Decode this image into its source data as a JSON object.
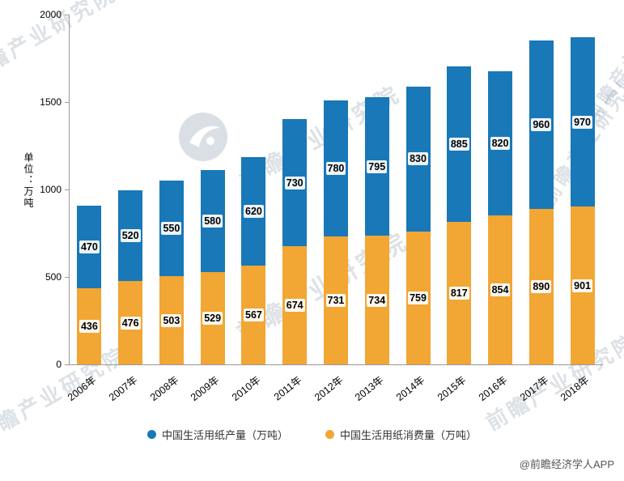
{
  "chart_data": {
    "type": "bar",
    "stacked": true,
    "title": "",
    "ylabel": "单位：万吨",
    "ylim": [
      0,
      2000
    ],
    "yticks": [
      0,
      500,
      1000,
      1500,
      2000
    ],
    "grid": false,
    "legend_position": "bottom",
    "categories": [
      "2006年",
      "2007年",
      "2008年",
      "2009年",
      "2010年",
      "2011年",
      "2012年",
      "2013年",
      "2014年",
      "2015年",
      "2016年",
      "2017年",
      "2018年"
    ],
    "series": [
      {
        "name": "中国生活用纸产量（万吨）",
        "color": "#1878b8",
        "stack_position": "top",
        "values": [
          470,
          520,
          550,
          580,
          620,
          730,
          780,
          795,
          830,
          885,
          820,
          960,
          970
        ]
      },
      {
        "name": "中国生活用纸消费量（万吨）",
        "color": "#f2a634",
        "stack_position": "bottom",
        "values": [
          436,
          476,
          503,
          529,
          567,
          674,
          731,
          734,
          759,
          817,
          854,
          890,
          901
        ]
      }
    ]
  },
  "watermark": {
    "text": "前瞻产业研究院"
  },
  "attribution": "@前瞻经济学人APP"
}
